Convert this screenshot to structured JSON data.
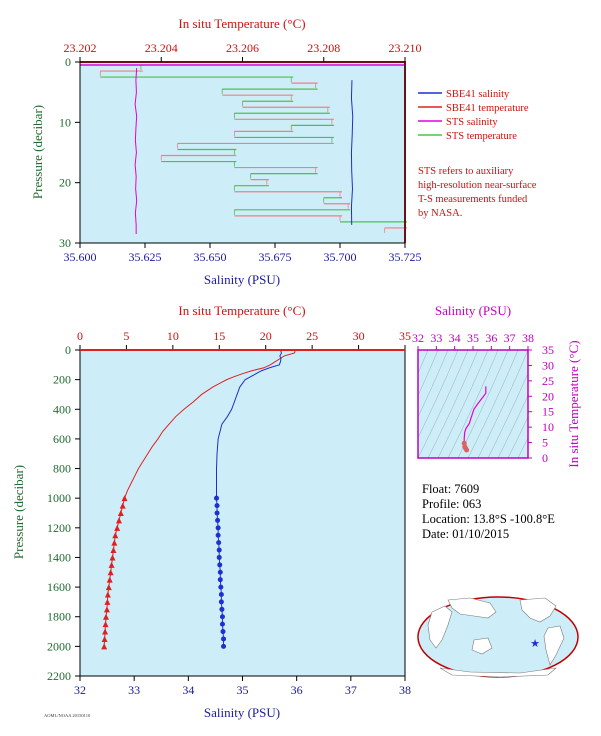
{
  "colors": {
    "plot_bg": "#cdeef8",
    "sbe_salinity": "#1f2fd0",
    "sbe_temperature": "#e02020",
    "sts_salinity": "#e000e0",
    "sts_temperature": "#4cc04c",
    "sts_temp_alt": "#f08080",
    "salinity_axis": "#1a1aa0",
    "temperature_axis": "#d01010",
    "pressure_axis": "#1f6b2f",
    "ts_axis": "#c000c0"
  },
  "top_plot": {
    "top_axis_title": "In situ Temperature (°C)",
    "top_ticks": [
      "23.202",
      "23.204",
      "23.206",
      "23.208",
      "23.210"
    ],
    "bottom_axis_title": "Salinity (PSU)",
    "bottom_ticks": [
      "35.600",
      "35.625",
      "35.650",
      "35.675",
      "35.700",
      "35.725"
    ],
    "left_axis_title": "Pressure (decibar)",
    "left_ticks": [
      "0",
      "10",
      "20",
      "30"
    ]
  },
  "legend": {
    "items": [
      {
        "label": "SBE41 salinity",
        "color_key": "sbe_salinity"
      },
      {
        "label": "SBE41 temperature",
        "color_key": "sbe_temperature"
      },
      {
        "label": "STS salinity",
        "color_key": "sts_salinity"
      },
      {
        "label": "STS temperature",
        "color_key": "sts_temperature"
      }
    ],
    "note_lines": [
      "STS refers to auxiliary",
      "high-resolution near-surface",
      "T-S measurements funded",
      "by NASA."
    ]
  },
  "main_plot": {
    "top_axis_title": "In situ Temperature (°C)",
    "top_ticks": [
      "0",
      "5",
      "10",
      "15",
      "20",
      "25",
      "30",
      "35"
    ],
    "bottom_axis_title": "Salinity (PSU)",
    "bottom_ticks": [
      "32",
      "33",
      "34",
      "35",
      "36",
      "37",
      "38"
    ],
    "left_axis_title": "Pressure (decibar)",
    "left_ticks": [
      "0",
      "200",
      "400",
      "600",
      "800",
      "1000",
      "1200",
      "1400",
      "1600",
      "1800",
      "2000",
      "2200"
    ]
  },
  "ts_plot": {
    "top_axis_title": "Salinity (PSU)",
    "top_ticks": [
      "32",
      "33",
      "34",
      "35",
      "36",
      "37",
      "38"
    ],
    "right_axis_title": "In situ Temperature (°C)",
    "right_ticks": [
      "0",
      "5",
      "10",
      "15",
      "20",
      "25",
      "30",
      "35"
    ]
  },
  "float_info": {
    "float": "Float:  7609",
    "profile": "Profile:  063",
    "location": "Location:  13.8°S  -100.8°E",
    "date": "Date:  01/10/2015"
  },
  "footer_code": "AOML/NOAA 20150110",
  "chart_data": [
    {
      "type": "line",
      "name": "top: near-surface profile (0-30 dbar)",
      "ylim": [
        0,
        30
      ],
      "xlim_salinity": [
        35.6,
        35.725
      ],
      "xlim_temperature": [
        23.202,
        23.21
      ],
      "series": [
        {
          "name": "SBE41 salinity",
          "pressure": [
            3,
            6,
            9,
            12,
            15,
            18,
            21,
            24,
            27
          ],
          "values": [
            35.7046,
            35.7044,
            35.7049,
            35.7047,
            35.7044,
            35.7045,
            35.7048,
            35.7044,
            35.7045
          ]
        },
        {
          "name": "SBE41 temperature",
          "pressure": [
            0,
            0,
            30
          ],
          "values": [
            23.202,
            23.21,
            23.21
          ]
        },
        {
          "name": "STS salinity",
          "pressure": [
            1,
            3,
            5,
            7,
            9,
            11,
            13,
            15,
            17,
            19,
            21,
            23,
            25,
            27,
            28.5
          ],
          "values": [
            35.6218,
            35.6215,
            35.6217,
            35.6212,
            35.6218,
            35.6215,
            35.6213,
            35.6217,
            35.6212,
            35.6216,
            35.6214,
            35.6218,
            35.6213,
            35.6216,
            35.6216
          ]
        },
        {
          "name": "STS temperature",
          "pressure": [
            0.5,
            1.5,
            2.5,
            3.5,
            4.5,
            5.5,
            6.5,
            7.5,
            8.5,
            9.5,
            10.5,
            11.5,
            12.5,
            13.5,
            14.5,
            15.5,
            16.5,
            17.5,
            18.5,
            19.5,
            20.5,
            21.5,
            22.5,
            23.5,
            24.5,
            25.5,
            26.5,
            27.5
          ],
          "values": [
            23.2035,
            23.2025,
            23.2072,
            23.2078,
            23.2055,
            23.2072,
            23.206,
            23.2081,
            23.2058,
            23.2082,
            23.2072,
            23.2058,
            23.2082,
            23.2044,
            23.2058,
            23.204,
            23.2058,
            23.2078,
            23.2062,
            23.2066,
            23.2058,
            23.2084,
            23.208,
            23.2086,
            23.2058,
            23.2084,
            23.21,
            23.2095
          ]
        }
      ]
    },
    {
      "type": "line",
      "name": "main: full profile (0-2200 dbar)",
      "ylim": [
        0,
        2200
      ],
      "xlim_salinity": [
        32,
        38
      ],
      "xlim_temperature": [
        0,
        35
      ],
      "series": [
        {
          "name": "SBE41 temperature",
          "pressure": [
            0,
            20,
            40,
            60,
            80,
            100,
            120,
            140,
            160,
            180,
            200,
            220,
            250,
            300,
            350,
            400,
            450,
            500,
            550,
            600,
            650,
            700,
            750,
            800,
            850,
            900,
            950,
            1000
          ],
          "values": [
            23.2,
            23.1,
            22.0,
            21.5,
            21.0,
            20.5,
            19.8,
            18.5,
            17.5,
            16.6,
            15.8,
            15.2,
            14.3,
            13.1,
            12.2,
            11.2,
            10.3,
            9.6,
            8.9,
            8.4,
            7.8,
            7.3,
            6.8,
            6.3,
            5.9,
            5.5,
            5.1,
            4.8
          ]
        },
        {
          "name": "SBE41 temperature (points)",
          "pressure": [
            1000,
            1050,
            1100,
            1150,
            1200,
            1250,
            1300,
            1350,
            1400,
            1450,
            1500,
            1550,
            1600,
            1650,
            1700,
            1750,
            1800,
            1850,
            1900,
            1950,
            2000
          ],
          "values": [
            4.8,
            4.6,
            4.4,
            4.2,
            4.0,
            3.8,
            3.7,
            3.6,
            3.5,
            3.4,
            3.3,
            3.2,
            3.1,
            3.0,
            2.95,
            2.9,
            2.8,
            2.75,
            2.7,
            2.65,
            2.6
          ]
        },
        {
          "name": "SBE41 salinity",
          "pressure": [
            0,
            20,
            40,
            60,
            80,
            100,
            120,
            140,
            160,
            180,
            200,
            250,
            300,
            350,
            400,
            450,
            500,
            600,
            700,
            800,
            900,
            1000
          ],
          "values": [
            35.7,
            35.72,
            35.69,
            35.71,
            35.7,
            35.68,
            35.5,
            35.35,
            35.25,
            35.15,
            35.05,
            34.95,
            34.9,
            34.85,
            34.8,
            34.72,
            34.62,
            34.55,
            34.53,
            34.52,
            34.52,
            34.52
          ]
        },
        {
          "name": "SBE41 salinity (points)",
          "pressure": [
            1000,
            1050,
            1100,
            1150,
            1200,
            1250,
            1300,
            1350,
            1400,
            1450,
            1500,
            1550,
            1600,
            1650,
            1700,
            1750,
            1800,
            1850,
            1900,
            1950,
            2000
          ],
          "values": [
            34.52,
            34.53,
            34.53,
            34.54,
            34.55,
            34.55,
            34.56,
            34.57,
            34.57,
            34.58,
            34.59,
            34.59,
            34.6,
            34.61,
            34.61,
            34.62,
            34.63,
            34.63,
            34.64,
            34.65,
            34.65
          ]
        }
      ]
    },
    {
      "type": "line",
      "name": "T-S diagram",
      "xlim": [
        32,
        38
      ],
      "ylim": [
        0,
        35
      ],
      "series": [
        {
          "name": "T-S profile",
          "x": [
            35.7,
            35.7,
            35.55,
            35.25,
            35.05,
            34.9,
            34.8,
            34.62,
            34.55,
            34.52,
            34.52,
            34.55,
            34.6,
            34.65
          ],
          "y": [
            23.2,
            21.0,
            19.8,
            17.5,
            15.8,
            13.1,
            11.2,
            9.6,
            8.4,
            6.3,
            4.8,
            3.7,
            3.1,
            2.6
          ]
        }
      ]
    }
  ]
}
